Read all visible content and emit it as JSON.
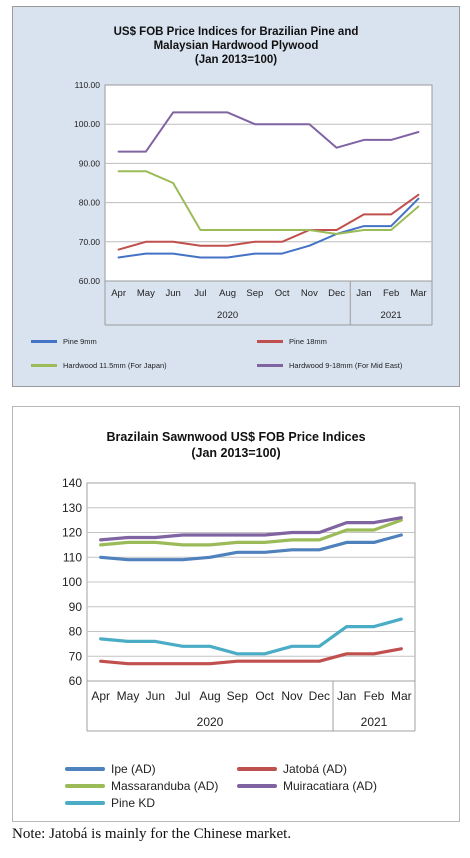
{
  "chart_data": [
    {
      "type": "line",
      "title_lines": [
        "US$ FOB Price Indices for Brazilian Pine and",
        "Malaysian Hardwood Plywood",
        "(Jan 2013=100)"
      ],
      "categories": [
        "Apr",
        "May",
        "Jun",
        "Jul",
        "Aug",
        "Sep",
        "Oct",
        "Nov",
        "Dec",
        "Jan",
        "Feb",
        "Mar"
      ],
      "year_labels": [
        {
          "label": "2020",
          "from": 0,
          "to": 8
        },
        {
          "label": "2021",
          "from": 9,
          "to": 11
        }
      ],
      "ylim": [
        60,
        110
      ],
      "yticks": [
        "60.00",
        "70.00",
        "80.00",
        "90.00",
        "100.00",
        "110.00"
      ],
      "grid": true,
      "legend_position": "bottom",
      "series": [
        {
          "name": "Pine 9mm",
          "color": "#4472c4",
          "values": [
            66,
            67,
            67,
            66,
            66,
            67,
            67,
            69,
            72,
            74,
            74,
            81
          ]
        },
        {
          "name": "Pine 18mm",
          "color": "#c0504d",
          "values": [
            68,
            70,
            70,
            69,
            69,
            70,
            70,
            73,
            73,
            77,
            77,
            82
          ]
        },
        {
          "name": "Hardwood 11.5mm (For Japan)",
          "color": "#9bbb59",
          "values": [
            88,
            88,
            85,
            73,
            73,
            73,
            73,
            73,
            72,
            73,
            73,
            79
          ]
        },
        {
          "name": "Hardwood 9-18mm (For Mid East)",
          "color": "#8064a2",
          "values": [
            93,
            93,
            103,
            103,
            103,
            100,
            100,
            100,
            94,
            96,
            96,
            98
          ]
        }
      ]
    },
    {
      "type": "line",
      "title_lines": [
        "Brazilain Sawnwood US$ FOB Price Indices",
        "(Jan 2013=100)"
      ],
      "categories": [
        "Apr",
        "May",
        "Jun",
        "Jul",
        "Aug",
        "Sep",
        "Oct",
        "Nov",
        "Dec",
        "Jan",
        "Feb",
        "Mar"
      ],
      "year_labels": [
        {
          "label": "2020",
          "from": 0,
          "to": 8
        },
        {
          "label": "2021",
          "from": 9,
          "to": 11
        }
      ],
      "ylim": [
        60,
        140
      ],
      "yticks": [
        "60",
        "70",
        "80",
        "90",
        "100",
        "110",
        "120",
        "130",
        "140"
      ],
      "grid": true,
      "legend_position": "bottom",
      "series": [
        {
          "name": "Ipe (AD)",
          "color": "#4f81bd",
          "values": [
            110,
            109,
            109,
            109,
            110,
            112,
            112,
            113,
            113,
            116,
            116,
            119
          ]
        },
        {
          "name": "Jatobá (AD)",
          "color": "#c0504d",
          "values": [
            68,
            67,
            67,
            67,
            67,
            68,
            68,
            68,
            68,
            71,
            71,
            73
          ]
        },
        {
          "name": "Massaranduba (AD)",
          "color": "#9bbb59",
          "values": [
            115,
            116,
            116,
            115,
            115,
            116,
            116,
            117,
            117,
            121,
            121,
            125
          ]
        },
        {
          "name": "Muiracatiara (AD)",
          "color": "#8064a2",
          "values": [
            117,
            118,
            118,
            119,
            119,
            119,
            119,
            120,
            120,
            124,
            124,
            126
          ]
        },
        {
          "name": "Pine KD",
          "color": "#4bacc6",
          "values": [
            77,
            76,
            76,
            74,
            74,
            71,
            71,
            74,
            74,
            82,
            82,
            85
          ]
        }
      ]
    }
  ],
  "note": "Note: Jatobá is mainly for the Chinese market."
}
